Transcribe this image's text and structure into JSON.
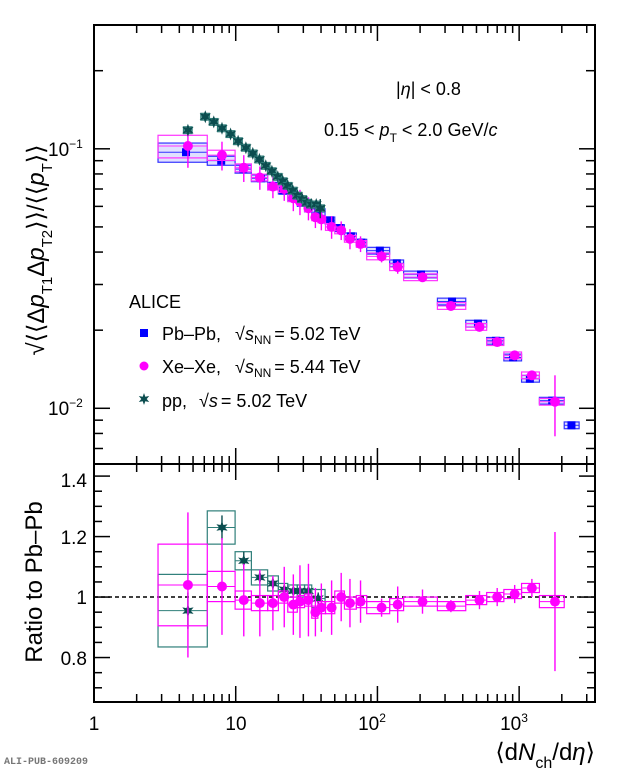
{
  "footer_id": "ALI-PUB-609209",
  "chart_data": [
    {
      "panel": "upper",
      "type": "scatter",
      "xscale": "log",
      "yscale": "log",
      "xlim": [
        1,
        3430
      ],
      "ylim": [
        0.0061,
        0.3
      ],
      "ylabel": "sqrt(<<Δp_T1 Δp_T2>>)/<<p_T>>",
      "ylabel_parts": {
        "pre": "√⟨⟨Δ",
        "p": "p",
        "t1": "T1",
        "mid": "Δ",
        "t2": "T2",
        "post": "⟩⟩/⟨⟨",
        "pT": "T",
        "end": "⟩⟩"
      },
      "ytick_labels": [
        {
          "value": 0.1,
          "base": "10",
          "exp": "−1"
        },
        {
          "value": 0.01,
          "base": "10",
          "exp": "−2"
        }
      ],
      "annotations": [
        {
          "text_parts": [
            "|",
            "η",
            "| < 0.8"
          ]
        },
        {
          "text_parts": [
            "0.15 <  ",
            "p",
            "T",
            " < 2.0 GeV/",
            "c"
          ]
        }
      ],
      "legend": {
        "title": "ALICE",
        "placement": "bottom-left",
        "entries": [
          {
            "label": "Pb–Pb,",
            "energy_sym": "s",
            "energy_sub": "NN",
            "energy_val": "= 5.02 TeV",
            "marker": "square",
            "color": "#0000ff"
          },
          {
            "label": "Xe–Xe,",
            "energy_sym": "s",
            "energy_sub": "NN",
            "energy_val": "= 5.44 TeV",
            "marker": "circle",
            "color": "#ff00ff"
          },
          {
            "label": "pp,",
            "energy_sym": "s",
            "energy_sub": "",
            "energy_val": "= 5.02 TeV",
            "marker": "star",
            "color": "#0b4d4f"
          }
        ]
      },
      "series": [
        {
          "name": "Pb–Pb",
          "color": "#0000ff",
          "box_color": "#3333ff",
          "marker": "square",
          "x": [
            4.46,
            7.9,
            11.3,
            15.1,
            18.3,
            21.6,
            25.4,
            28.9,
            32.4,
            38.2,
            46.3,
            54,
            65,
            77,
            104,
            137,
            203,
            336,
            512,
            686,
            906,
            1190,
            1710,
            2340
          ],
          "y": [
            0.097,
            0.09,
            0.0835,
            0.077,
            0.072,
            0.069,
            0.065,
            0.062,
            0.059,
            0.057,
            0.053,
            0.0495,
            0.046,
            0.0435,
            0.0405,
            0.0362,
            0.0328,
            0.0258,
            0.0212,
            0.0182,
            0.0157,
            0.013,
            0.0107,
            0.0086
          ],
          "yerr": [
            0.0,
            0.0,
            0.0,
            0.0,
            0.0,
            0.0,
            0.0,
            0.0,
            0.0,
            0.0,
            0.0,
            0.0,
            0.0,
            0.0,
            0.0,
            0.0,
            0.0,
            0.0,
            0.0,
            0.0,
            0.0,
            0.0,
            0.0,
            0.0
          ],
          "xbox": [
            [
              2.83,
              6.3
            ],
            [
              6.3,
              9.9
            ],
            [
              9.9,
              12.9
            ],
            [
              12.9,
              16.8
            ],
            [
              16.8,
              20
            ],
            [
              20,
              23.3
            ],
            [
              23.3,
              27.2
            ],
            [
              27.2,
              30.6
            ],
            [
              30.6,
              34.4
            ],
            [
              34.4,
              42.7
            ],
            [
              42.7,
              50
            ],
            [
              50,
              58.5
            ],
            [
              58.5,
              71
            ],
            [
              71,
              84
            ],
            [
              84,
              122
            ],
            [
              122,
              153
            ],
            [
              153,
              265
            ],
            [
              265,
              420
            ],
            [
              420,
              590
            ],
            [
              590,
              780
            ],
            [
              780,
              1040
            ],
            [
              1040,
              1390
            ],
            [
              1390,
              2080
            ],
            [
              2080,
              2650
            ]
          ],
          "ysys_frac": [
            0.085,
            0.04,
            0.035,
            0.03,
            0.03,
            0.03,
            0.03,
            0.03,
            0.03,
            0.03,
            0.03,
            0.03,
            0.03,
            0.03,
            0.03,
            0.03,
            0.03,
            0.03,
            0.03,
            0.03,
            0.03,
            0.03,
            0.03,
            0.03
          ]
        },
        {
          "name": "Xe–Xe",
          "color": "#ff00ff",
          "box_color": "#ff33ff",
          "marker": "circle",
          "x": [
            4.6,
            8.0,
            11.4,
            14.8,
            18.3,
            22,
            25.5,
            28.4,
            32.6,
            36.5,
            40.2,
            47.5,
            55.5,
            64,
            76,
            107,
            139,
            208,
            330,
            525,
            700,
            930,
            1230,
            1790
          ],
          "y": [
            0.1025,
            0.0945,
            0.0845,
            0.0775,
            0.0715,
            0.07,
            0.0645,
            0.0625,
            0.059,
            0.0545,
            0.0535,
            0.05,
            0.0485,
            0.045,
            0.043,
            0.0385,
            0.035,
            0.032,
            0.0248,
            0.0206,
            0.018,
            0.016,
            0.0134,
            0.0106
          ],
          "yerr": [
            0.018,
            0.012,
            0.01,
            0.008,
            0.007,
            0.007,
            0.007,
            0.007,
            0.006,
            0.005,
            0.005,
            0.005,
            0.004,
            0.004,
            0.003,
            0.002,
            0.002,
            0.001,
            0.0007,
            0.0006,
            0.0006,
            0.0005,
            0.0005,
            0.0028
          ],
          "xbox": [
            [
              2.83,
              6.3
            ],
            [
              6.3,
              9.9
            ],
            [
              9.9,
              12.9
            ],
            [
              12.9,
              16.8
            ],
            [
              16.8,
              20
            ],
            [
              20,
              23.3
            ],
            [
              23.3,
              27.2
            ],
            [
              27.2,
              30.6
            ],
            [
              30.6,
              34.4
            ],
            [
              34.4,
              38
            ],
            [
              38,
              43
            ],
            [
              43,
              50
            ],
            [
              50,
              58.5
            ],
            [
              58.5,
              71
            ],
            [
              71,
              84
            ],
            [
              84,
              122
            ],
            [
              122,
              153
            ],
            [
              153,
              265
            ],
            [
              265,
              420
            ],
            [
              420,
              590
            ],
            [
              590,
              780
            ],
            [
              780,
              1040
            ],
            [
              1040,
              1390
            ],
            [
              1390,
              2080
            ]
          ],
          "ysys_frac": [
            0.1,
            0.045,
            0.035,
            0.03,
            0.03,
            0.03,
            0.03,
            0.03,
            0.03,
            0.03,
            0.03,
            0.03,
            0.03,
            0.03,
            0.03,
            0.03,
            0.03,
            0.03,
            0.03,
            0.03,
            0.03,
            0.03,
            0.03,
            0.03
          ]
        },
        {
          "name": "pp",
          "color": "#0b4d4f",
          "box_color": "#2f7f7a",
          "marker": "star",
          "x": [
            4.6,
            6.1,
            7.0,
            8.0,
            9.2,
            10.4,
            11.8,
            13.2,
            14.7,
            16.3,
            18.0,
            19.8,
            21.5,
            23.3,
            25.3,
            27.3,
            29.5,
            31.8,
            34.3,
            37.0,
            39.5
          ],
          "y": [
            0.118,
            0.133,
            0.127,
            0.12,
            0.114,
            0.107,
            0.101,
            0.096,
            0.091,
            0.086,
            0.082,
            0.078,
            0.075,
            0.072,
            0.069,
            0.066,
            0.064,
            0.062,
            0.061,
            0.061,
            0.059
          ],
          "yerr": [
            0.0,
            0.0,
            0.0,
            0.0,
            0.0,
            0.0,
            0.0,
            0.0,
            0.0,
            0.0,
            0.0,
            0.0,
            0.0,
            0.0,
            0.0,
            0.0,
            0.0,
            0.0,
            0.0,
            0.0,
            0.005
          ],
          "xbox_frac": 0.07,
          "ysys_frac": 0.03
        }
      ]
    },
    {
      "panel": "lower",
      "type": "scatter",
      "xscale": "log",
      "xlim": [
        1,
        3430
      ],
      "ylim": [
        0.653,
        1.44
      ],
      "ylabel": "Ratio to Pb–Pb",
      "xlabel_parts": {
        "open": "⟨d",
        "N": "N",
        "sub": "ch",
        "close": "/d",
        "eta": "η",
        "end": "⟩"
      },
      "xtick_labels": [
        {
          "value": 1,
          "base": "1",
          "exp": ""
        },
        {
          "value": 10,
          "base": "10",
          "exp": ""
        },
        {
          "value": 100,
          "base": "10",
          "exp": "2"
        },
        {
          "value": 1000,
          "base": "10",
          "exp": "3"
        }
      ],
      "ytick_labels": [
        {
          "value": 0.8,
          "label": "0.8"
        },
        {
          "value": 1.0,
          "label": "1"
        },
        {
          "value": 1.2,
          "label": "1.2"
        },
        {
          "value": 1.4,
          "label": "1.4"
        }
      ],
      "reference_line": 1.0,
      "series": [
        {
          "name": "Xe–Xe / Pb–Pb",
          "color": "#ff00ff",
          "marker": "circle",
          "x": [
            4.6,
            8.0,
            11.4,
            14.8,
            18.3,
            22,
            25.5,
            28.4,
            32.6,
            36.5,
            40.2,
            47.5,
            55.5,
            64,
            76,
            107,
            139,
            208,
            330,
            525,
            700,
            930,
            1230,
            1790
          ],
          "y": [
            1.04,
            1.035,
            0.99,
            0.98,
            0.98,
            1.0,
            0.975,
            0.985,
            0.99,
            0.95,
            0.965,
            0.965,
            1.0,
            0.98,
            0.985,
            0.965,
            0.975,
            0.985,
            0.97,
            0.99,
            1.0,
            1.01,
            1.03,
            0.985
          ],
          "yerr": [
            0.24,
            0.16,
            0.12,
            0.11,
            0.09,
            0.1,
            0.1,
            0.12,
            0.12,
            0.08,
            0.08,
            0.09,
            0.08,
            0.08,
            0.07,
            0.03,
            0.06,
            0.04,
            0.02,
            0.03,
            0.03,
            0.03,
            0.03,
            0.23
          ],
          "xbox": [
            [
              2.83,
              6.3
            ],
            [
              6.3,
              9.9
            ],
            [
              9.9,
              12.9
            ],
            [
              12.9,
              16.8
            ],
            [
              16.8,
              20
            ],
            [
              20,
              23.3
            ],
            [
              23.3,
              27.2
            ],
            [
              27.2,
              30.6
            ],
            [
              30.6,
              34.4
            ],
            [
              34.4,
              38
            ],
            [
              38,
              43
            ],
            [
              43,
              50
            ],
            [
              50,
              58.5
            ],
            [
              58.5,
              71
            ],
            [
              71,
              84
            ],
            [
              84,
              122
            ],
            [
              122,
              153
            ],
            [
              153,
              265
            ],
            [
              265,
              420
            ],
            [
              420,
              590
            ],
            [
              590,
              780
            ],
            [
              780,
              1040
            ],
            [
              1040,
              1390
            ],
            [
              1390,
              2080
            ]
          ],
          "ysys": [
            0.135,
            0.05,
            0.03,
            0.025,
            0.025,
            0.02,
            0.025,
            0.02,
            0.02,
            0.02,
            0.02,
            0.02,
            0.02,
            0.02,
            0.02,
            0.02,
            0.02,
            0.015,
            0.015,
            0.015,
            0.015,
            0.015,
            0.015,
            0.02
          ]
        },
        {
          "name": "pp / Pb–Pb",
          "color": "#0b4d4f",
          "box_color": "#2f7f7a",
          "marker": "star",
          "x": [
            4.6,
            8.0,
            11.4,
            14.8,
            18.3,
            22,
            25.5,
            28.4,
            32.6,
            38.2
          ],
          "y": [
            0.955,
            1.23,
            1.12,
            1.065,
            1.045,
            1.025,
            1.02,
            1.02,
            1.02,
            0.995
          ],
          "yerr": [
            0.06,
            0.04,
            0.03,
            0.02,
            0.02,
            0.02,
            0.02,
            0.02,
            0.02,
            0.02
          ],
          "xbox": [
            [
              2.83,
              6.3
            ],
            [
              6.3,
              9.9
            ],
            [
              9.9,
              12.9
            ],
            [
              12.9,
              16.8
            ],
            [
              16.8,
              20
            ],
            [
              20,
              23.3
            ],
            [
              23.3,
              27.2
            ],
            [
              27.2,
              30.6
            ],
            [
              30.6,
              34.4
            ],
            [
              34.4,
              42.7
            ]
          ],
          "ysys": [
            0.12,
            0.055,
            0.03,
            0.025,
            0.025,
            0.02,
            0.02,
            0.02,
            0.02,
            0.03
          ]
        }
      ]
    }
  ]
}
